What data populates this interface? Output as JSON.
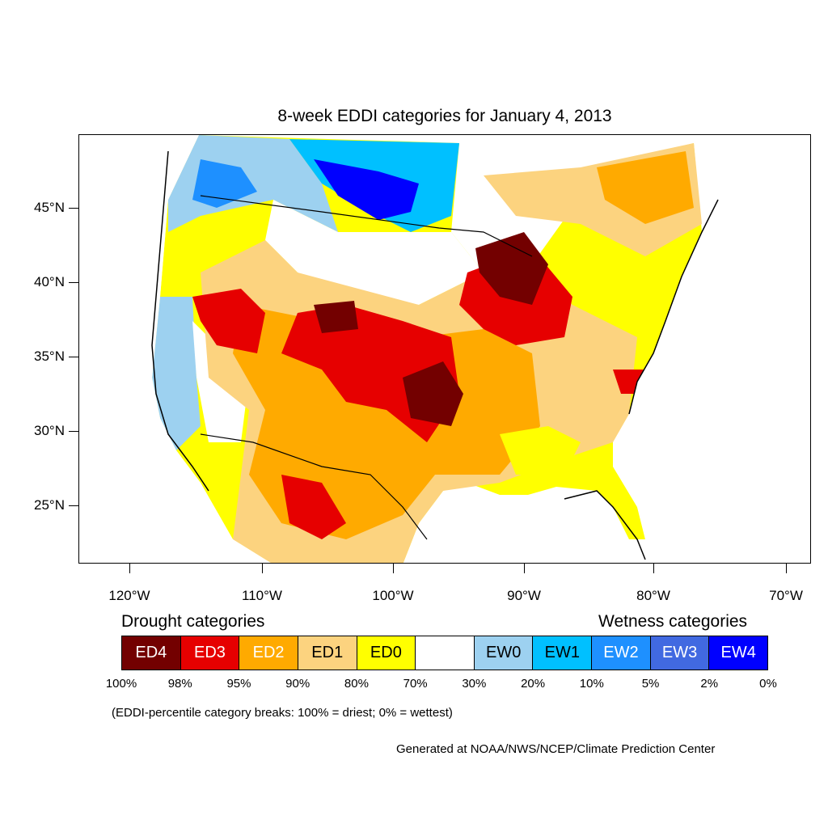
{
  "title": "8-week EDDI categories for January 4, 2013",
  "latitude_labels": [
    "45°N",
    "40°N",
    "35°N",
    "30°N",
    "25°N"
  ],
  "longitude_labels": [
    "120°W",
    "110°W",
    "100°W",
    "90°W",
    "80°W",
    "70°W"
  ],
  "legend": {
    "drought_heading": "Drought categories",
    "wetness_heading": "Wetness categories",
    "categories": [
      {
        "label": "ED4",
        "color": "#730000",
        "text_color": "#ffffff"
      },
      {
        "label": "ED3",
        "color": "#e60000",
        "text_color": "#ffffff"
      },
      {
        "label": "ED2",
        "color": "#ffaa00",
        "text_color": "#ffffff"
      },
      {
        "label": "ED1",
        "color": "#fcd37f",
        "text_color": "#000000"
      },
      {
        "label": "ED0",
        "color": "#ffff00",
        "text_color": "#000000"
      },
      {
        "label": "",
        "color": "#ffffff",
        "text_color": "#000000"
      },
      {
        "label": "EW0",
        "color": "#9dd1f0",
        "text_color": "#000000"
      },
      {
        "label": "EW1",
        "color": "#00c0ff",
        "text_color": "#000000"
      },
      {
        "label": "EW2",
        "color": "#1e90ff",
        "text_color": "#ffffff"
      },
      {
        "label": "EW3",
        "color": "#4169e1",
        "text_color": "#ffffff"
      },
      {
        "label": "EW4",
        "color": "#0000ff",
        "text_color": "#ffffff"
      }
    ],
    "percentile_breaks": [
      "100%",
      "98%",
      "95%",
      "90%",
      "80%",
      "70%",
      "30%",
      "20%",
      "10%",
      "5%",
      "2%",
      "0%"
    ]
  },
  "note": "(EDDI-percentile category breaks: 100% = driest; 0% = wettest)",
  "credit": "Generated at NOAA/NWS/NCEP/Climate Prediction Center"
}
